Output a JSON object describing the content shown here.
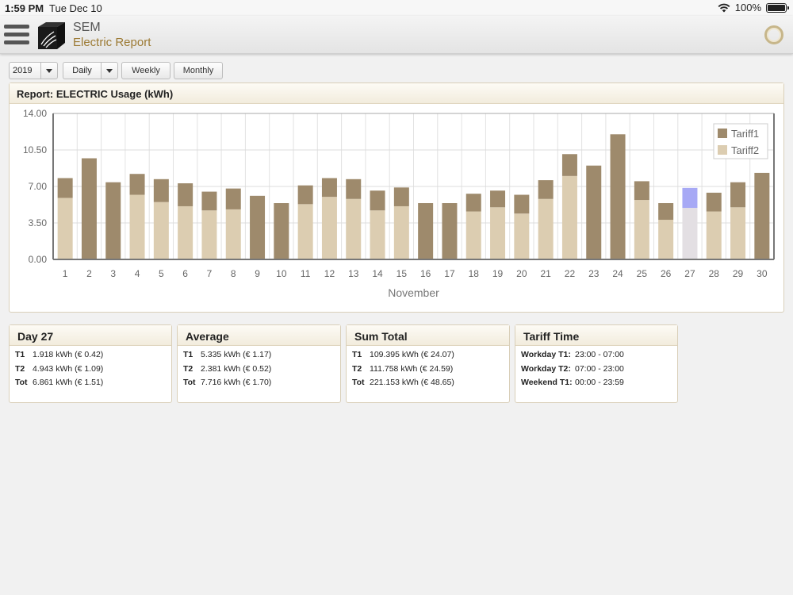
{
  "status_bar": {
    "time": "1:59 PM",
    "date": "Tue Dec 10",
    "battery": "100%"
  },
  "app": {
    "title": "SEM",
    "subtitle": "Electric Report"
  },
  "toolbar": {
    "year": "2019",
    "period": "Daily",
    "weekly": "Weekly",
    "monthly": "Monthly"
  },
  "report": {
    "title": "Report: ELECTRIC Usage (kWh)"
  },
  "colors": {
    "tariff1": "#9e8a6c",
    "tariff2": "#dccdb1",
    "selected_top": "#a7a9f5",
    "selected_bottom": "#e3dfe3"
  },
  "chart_data": {
    "type": "bar",
    "stacked": true,
    "xlabel": "November",
    "ylim": [
      0,
      14
    ],
    "yticks": [
      "0.00",
      "3.50",
      "7.00",
      "10.50",
      "14.00"
    ],
    "categories": [
      "1",
      "2",
      "3",
      "4",
      "5",
      "6",
      "7",
      "8",
      "9",
      "10",
      "11",
      "12",
      "13",
      "14",
      "15",
      "16",
      "17",
      "18",
      "19",
      "20",
      "21",
      "22",
      "23",
      "24",
      "25",
      "26",
      "27",
      "28",
      "29",
      "30"
    ],
    "legend": "top-right",
    "grid": true,
    "selected_index": 26,
    "series": [
      {
        "name": "Tariff1",
        "values": [
          1.9,
          9.7,
          7.4,
          2.0,
          2.2,
          2.2,
          1.8,
          2.0,
          6.1,
          5.4,
          1.8,
          1.8,
          1.9,
          1.9,
          1.8,
          5.4,
          5.4,
          1.7,
          1.6,
          1.8,
          1.8,
          2.1,
          9.0,
          12.0,
          1.8,
          1.6,
          1.918,
          1.8,
          2.4,
          8.3
        ]
      },
      {
        "name": "Tariff2",
        "values": [
          5.9,
          0,
          0,
          6.2,
          5.5,
          5.1,
          4.7,
          4.8,
          0,
          0,
          5.3,
          6.0,
          5.8,
          4.7,
          5.1,
          0,
          0,
          4.6,
          5.0,
          4.4,
          5.8,
          8.0,
          0,
          0,
          5.7,
          3.8,
          4.943,
          4.6,
          5.0,
          0
        ]
      }
    ]
  },
  "cards": [
    {
      "title": "Day 27",
      "rows": [
        {
          "label": "T1",
          "value": "1.918 kWh (€ 0.42)"
        },
        {
          "label": "T2",
          "value": "4.943 kWh (€ 1.09)"
        },
        {
          "label": "Tot",
          "value": "6.861 kWh (€ 1.51)"
        }
      ]
    },
    {
      "title": "Average",
      "rows": [
        {
          "label": "T1",
          "value": "5.335 kWh (€ 1.17)"
        },
        {
          "label": "T2",
          "value": "2.381 kWh (€ 0.52)"
        },
        {
          "label": "Tot",
          "value": "7.716 kWh (€ 1.70)"
        }
      ]
    },
    {
      "title": "Sum Total",
      "rows": [
        {
          "label": "T1",
          "value": "109.395 kWh (€ 24.07)"
        },
        {
          "label": "T2",
          "value": "111.758 kWh (€ 24.59)"
        },
        {
          "label": "Tot",
          "value": "221.153 kWh (€ 48.65)"
        }
      ]
    },
    {
      "title": "Tariff Time",
      "rows": [
        {
          "label": "Workday T1:",
          "value": "23:00 - 07:00"
        },
        {
          "label": "Workday T2:",
          "value": "07:00 - 23:00"
        },
        {
          "label": "Weekend T1:",
          "value": "00:00 - 23:59"
        }
      ]
    }
  ]
}
